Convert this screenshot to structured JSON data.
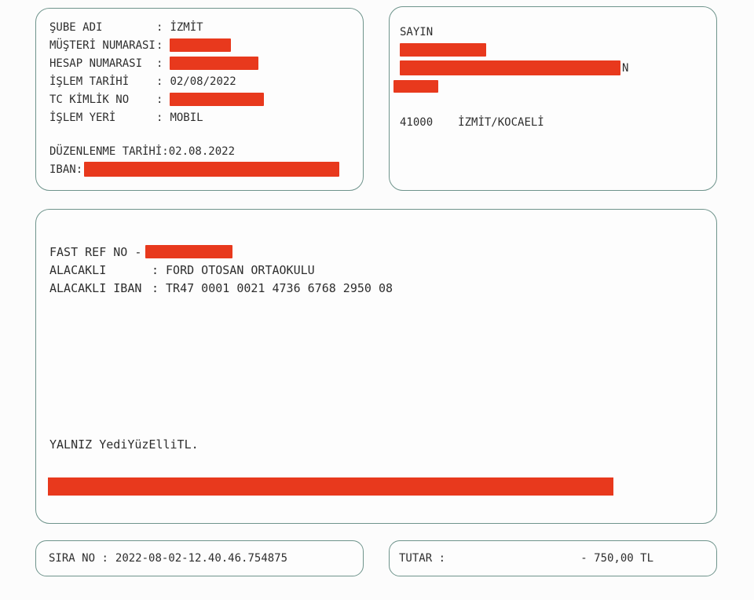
{
  "colors": {
    "border": "#6f948c",
    "redaction": "#e8391d",
    "text": "#2e2e2e",
    "page_bg": "#fcfcfc"
  },
  "branch_box": {
    "rows": [
      {
        "label": "ŞUBE ADI",
        "sep": ":",
        "value": "İZMİT",
        "redacted": false
      },
      {
        "label": "MÜŞTERİ NUMARASI",
        "sep": ":",
        "value": "",
        "redacted": true
      },
      {
        "label": "HESAP NUMARASI",
        "sep": ":",
        "value": "",
        "redacted": true
      },
      {
        "label": "İŞLEM TARİHİ",
        "sep": ":",
        "value": "02/08/2022",
        "redacted": false
      },
      {
        "label": "TC KİMLİK NO",
        "sep": ":",
        "value": "",
        "redacted": true
      },
      {
        "label": "İŞLEM YERİ",
        "sep": ":",
        "value": "MOBIL",
        "redacted": false
      }
    ],
    "issue_date_line": "DÜZENLENME TARİHİ:02.08.2022",
    "iban_label": "IBAN:"
  },
  "recipient_box": {
    "salutation": "SAYIN",
    "redacted_lines": 3,
    "visible_suffix": "N",
    "postal_code": "41000",
    "city": "İZMİT/KOCAELİ"
  },
  "transaction_box": {
    "fast_ref_label": "FAST REF NO -",
    "rows": [
      {
        "label": "ALACAKLI",
        "sep": ":",
        "value": "FORD OTOSAN ORTAOKULU"
      },
      {
        "label": "ALACAKLI IBAN",
        "sep": ":",
        "value": "TR47 0001 0021 4736 6768 2950 08"
      }
    ],
    "amount_words": "YALNIZ YediYüzElliTL."
  },
  "sequence_box": {
    "label": "SIRA NO",
    "sep": ":",
    "value": "2022-08-02-12.40.46.754875"
  },
  "amount_box": {
    "label": "TUTAR",
    "sep": ":",
    "value": "- 750,00 TL"
  }
}
